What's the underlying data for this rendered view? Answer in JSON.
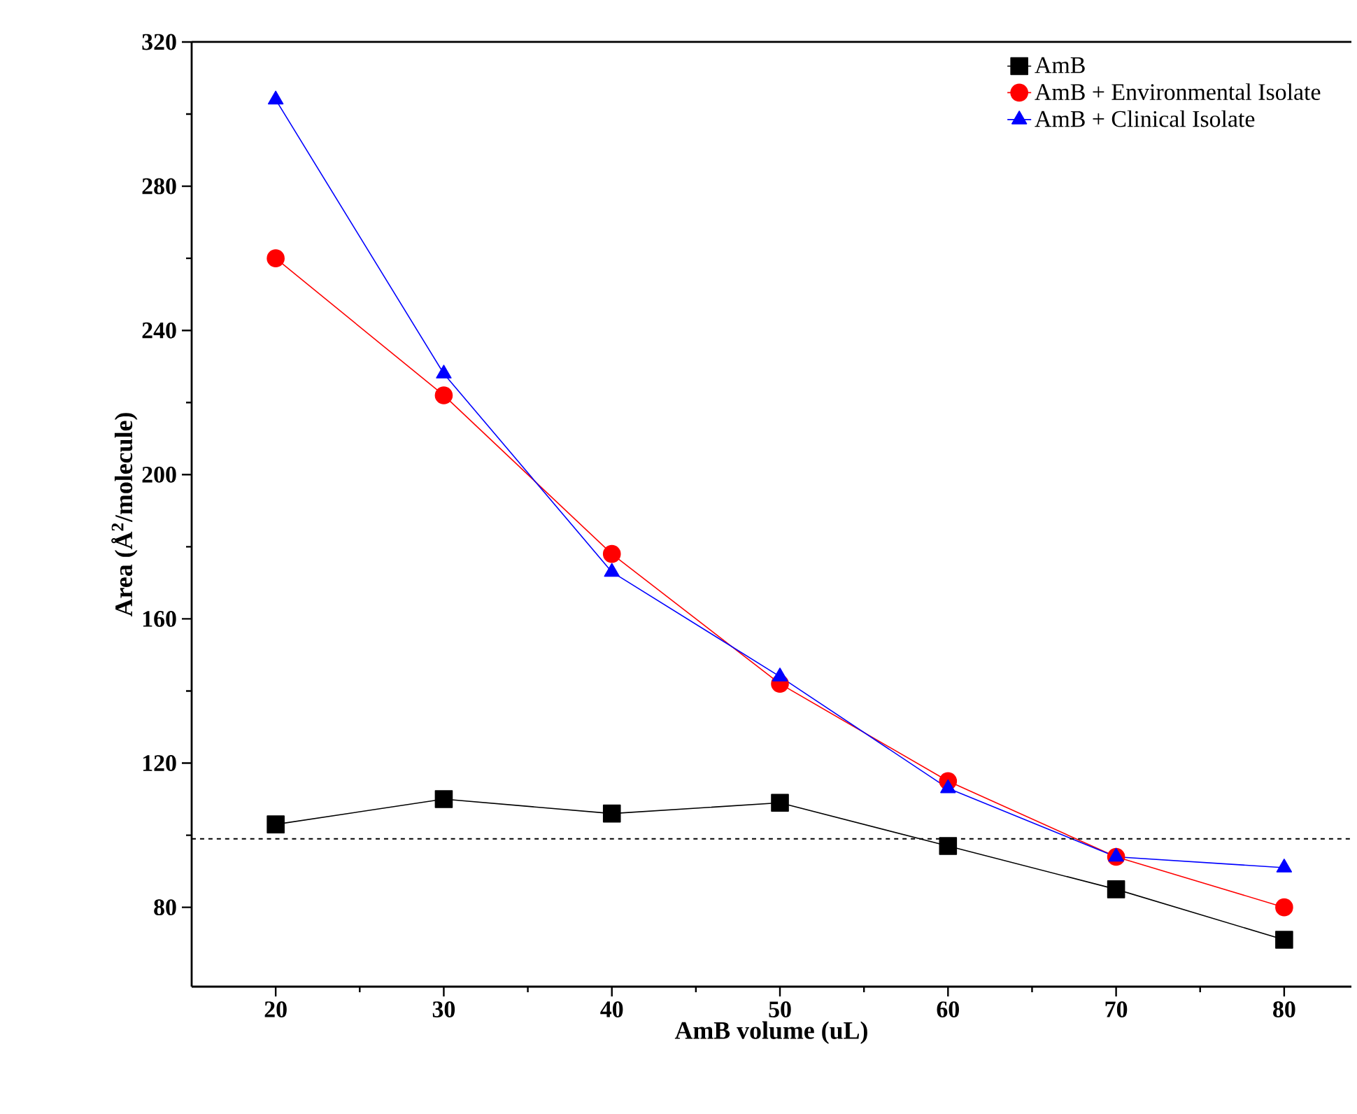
{
  "chart_data": {
    "type": "line",
    "xlabel": "AmB volume (uL)",
    "ylabel": "Area (Å$^{2}$/molecule)",
    "x": [
      20,
      30,
      40,
      50,
      60,
      70,
      80
    ],
    "series": [
      {
        "name": "AmB",
        "color": "#000000",
        "marker": "square",
        "values": [
          103,
          110,
          106,
          109,
          97,
          85,
          71
        ]
      },
      {
        "name": "AmB + Environmental Isolate",
        "color": "#ff0000",
        "marker": "circle",
        "values": [
          260,
          222,
          178,
          142,
          115,
          94,
          80
        ]
      },
      {
        "name": "AmB + Clinical Isolate",
        "color": "#0000ff",
        "marker": "triangle",
        "values": [
          304,
          228,
          173,
          144,
          113,
          94,
          91
        ]
      }
    ],
    "xlim": [
      15,
      84
    ],
    "ylim": [
      58,
      320
    ],
    "xticks": [
      20,
      30,
      40,
      50,
      60,
      70,
      80
    ],
    "yticks": [
      80,
      120,
      160,
      200,
      240,
      280,
      320
    ],
    "ref_lines": [
      {
        "axis": "y",
        "value": 99,
        "color": "#000000",
        "line_style": "dashed"
      }
    ],
    "grid": false,
    "legend": "top right",
    "line_style": "solid"
  }
}
